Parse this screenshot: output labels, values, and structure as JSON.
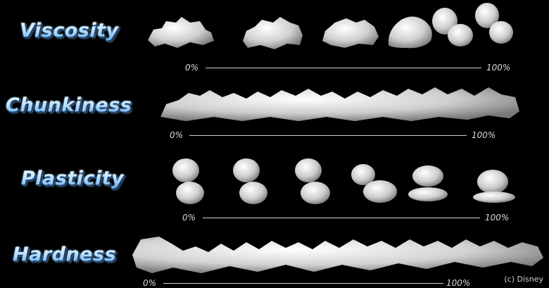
{
  "rows": [
    {
      "name": "viscosity",
      "title": "Viscosity",
      "min_label": "0%",
      "max_label": "100%"
    },
    {
      "name": "chunkiness",
      "title": "Chunkiness",
      "min_label": "0%",
      "max_label": "100%"
    },
    {
      "name": "plasticity",
      "title": "Plasticity",
      "min_label": "0%",
      "max_label": "100%"
    },
    {
      "name": "hardness",
      "title": "Hardness",
      "min_label": "0%",
      "max_label": "100%"
    }
  ],
  "credit": "(c) Disney"
}
